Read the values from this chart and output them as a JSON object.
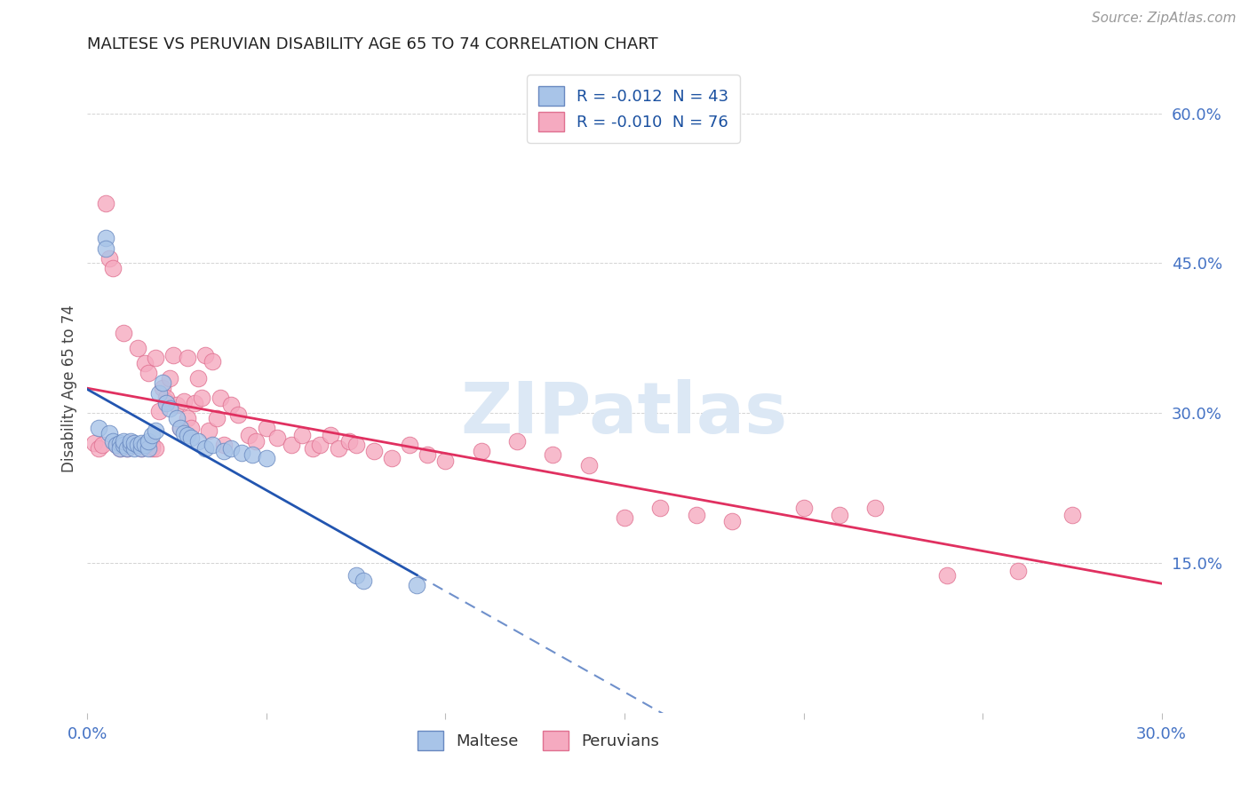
{
  "title": "MALTESE VS PERUVIAN DISABILITY AGE 65 TO 74 CORRELATION CHART",
  "source": "Source: ZipAtlas.com",
  "ylabel": "Disability Age 65 to 74",
  "xlim": [
    0.0,
    0.3
  ],
  "ylim": [
    0.0,
    0.65
  ],
  "xtick_positions": [
    0.0,
    0.05,
    0.1,
    0.15,
    0.2,
    0.25,
    0.3
  ],
  "xticklabels": [
    "0.0%",
    "",
    "",
    "",
    "",
    "",
    "30.0%"
  ],
  "ytick_positions": [
    0.0,
    0.15,
    0.3,
    0.45,
    0.6
  ],
  "yticklabels": [
    "",
    "15.0%",
    "30.0%",
    "45.0%",
    "60.0%"
  ],
  "R_maltese": -0.012,
  "N_maltese": 43,
  "R_peruvian": -0.01,
  "N_peruvian": 76,
  "maltese_color": "#a8c4e8",
  "peruvian_color": "#f5aac0",
  "maltese_edge": "#6888c0",
  "peruvian_edge": "#e07090",
  "trend_maltese_color": "#2255b0",
  "trend_peruvian_color": "#e03060",
  "tick_color": "#4472c4",
  "grid_color": "#c8c8c8",
  "watermark_color": "#dce8f5",
  "maltese_x": [
    0.003,
    0.005,
    0.005,
    0.006,
    0.007,
    0.008,
    0.009,
    0.009,
    0.01,
    0.01,
    0.011,
    0.012,
    0.012,
    0.013,
    0.013,
    0.014,
    0.015,
    0.015,
    0.016,
    0.017,
    0.017,
    0.018,
    0.019,
    0.02,
    0.021,
    0.022,
    0.023,
    0.025,
    0.026,
    0.027,
    0.028,
    0.029,
    0.031,
    0.033,
    0.035,
    0.038,
    0.04,
    0.043,
    0.046,
    0.05,
    0.075,
    0.077,
    0.092
  ],
  "maltese_y": [
    0.285,
    0.475,
    0.465,
    0.28,
    0.272,
    0.268,
    0.27,
    0.265,
    0.268,
    0.272,
    0.265,
    0.268,
    0.272,
    0.265,
    0.27,
    0.268,
    0.265,
    0.27,
    0.268,
    0.265,
    0.272,
    0.278,
    0.282,
    0.32,
    0.33,
    0.31,
    0.305,
    0.295,
    0.285,
    0.28,
    0.278,
    0.275,
    0.272,
    0.265,
    0.268,
    0.262,
    0.265,
    0.26,
    0.258,
    0.255,
    0.138,
    0.132,
    0.128
  ],
  "peruvian_x": [
    0.002,
    0.003,
    0.004,
    0.005,
    0.006,
    0.007,
    0.008,
    0.009,
    0.01,
    0.01,
    0.011,
    0.012,
    0.013,
    0.014,
    0.015,
    0.015,
    0.016,
    0.017,
    0.018,
    0.018,
    0.019,
    0.019,
    0.02,
    0.021,
    0.022,
    0.022,
    0.023,
    0.024,
    0.025,
    0.026,
    0.027,
    0.028,
    0.028,
    0.029,
    0.03,
    0.031,
    0.032,
    0.033,
    0.034,
    0.035,
    0.036,
    0.037,
    0.038,
    0.04,
    0.042,
    0.045,
    0.047,
    0.05,
    0.053,
    0.057,
    0.06,
    0.063,
    0.065,
    0.068,
    0.07,
    0.073,
    0.075,
    0.08,
    0.085,
    0.09,
    0.095,
    0.1,
    0.11,
    0.12,
    0.13,
    0.14,
    0.15,
    0.16,
    0.17,
    0.18,
    0.2,
    0.21,
    0.22,
    0.24,
    0.26,
    0.275
  ],
  "peruvian_y": [
    0.27,
    0.265,
    0.268,
    0.51,
    0.455,
    0.445,
    0.268,
    0.265,
    0.268,
    0.38,
    0.265,
    0.27,
    0.268,
    0.365,
    0.268,
    0.265,
    0.35,
    0.34,
    0.268,
    0.265,
    0.355,
    0.265,
    0.302,
    0.325,
    0.312,
    0.315,
    0.335,
    0.358,
    0.308,
    0.285,
    0.312,
    0.295,
    0.355,
    0.285,
    0.31,
    0.335,
    0.315,
    0.358,
    0.282,
    0.352,
    0.295,
    0.315,
    0.268,
    0.308,
    0.298,
    0.278,
    0.272,
    0.285,
    0.275,
    0.268,
    0.278,
    0.265,
    0.268,
    0.278,
    0.265,
    0.272,
    0.268,
    0.262,
    0.255,
    0.268,
    0.258,
    0.252,
    0.262,
    0.272,
    0.258,
    0.248,
    0.195,
    0.205,
    0.198,
    0.192,
    0.205,
    0.198,
    0.205,
    0.138,
    0.142,
    0.198
  ]
}
